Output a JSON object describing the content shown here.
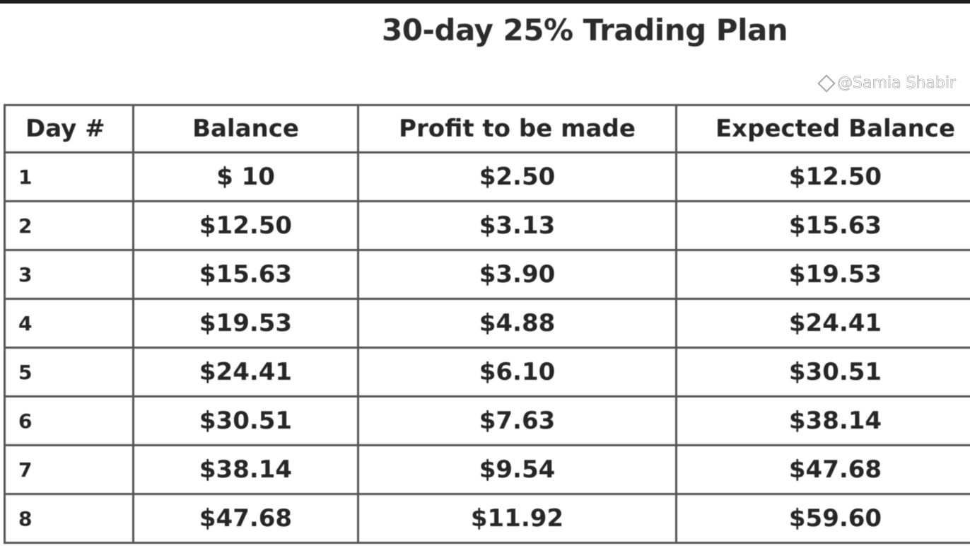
{
  "title": "30-day 25% Trading Plan",
  "table": {
    "headers": [
      "Day #",
      "Balance",
      "Profit to be made",
      "Expected Balance"
    ],
    "rows": [
      [
        "1",
        "$ 10",
        "$2.50",
        "$12.50"
      ],
      [
        "2",
        "$12.50",
        "$3.13",
        "$15.63"
      ],
      [
        "3",
        "$15.63",
        "$3.90",
        "$19.53"
      ],
      [
        "4",
        "$19.53",
        "$4.88",
        "$24.41"
      ],
      [
        "5",
        "$24.41",
        "$6.10",
        "$30.51"
      ],
      [
        "6",
        "$30.51",
        "$7.63",
        "$38.14"
      ],
      [
        "7",
        "$38.14",
        "$9.54",
        "$47.68"
      ],
      [
        "8",
        "$47.68",
        "$11.92",
        "$59.60"
      ]
    ]
  },
  "watermark": {
    "text": "@Samia Shabir",
    "icon": "binance-logo-icon"
  }
}
